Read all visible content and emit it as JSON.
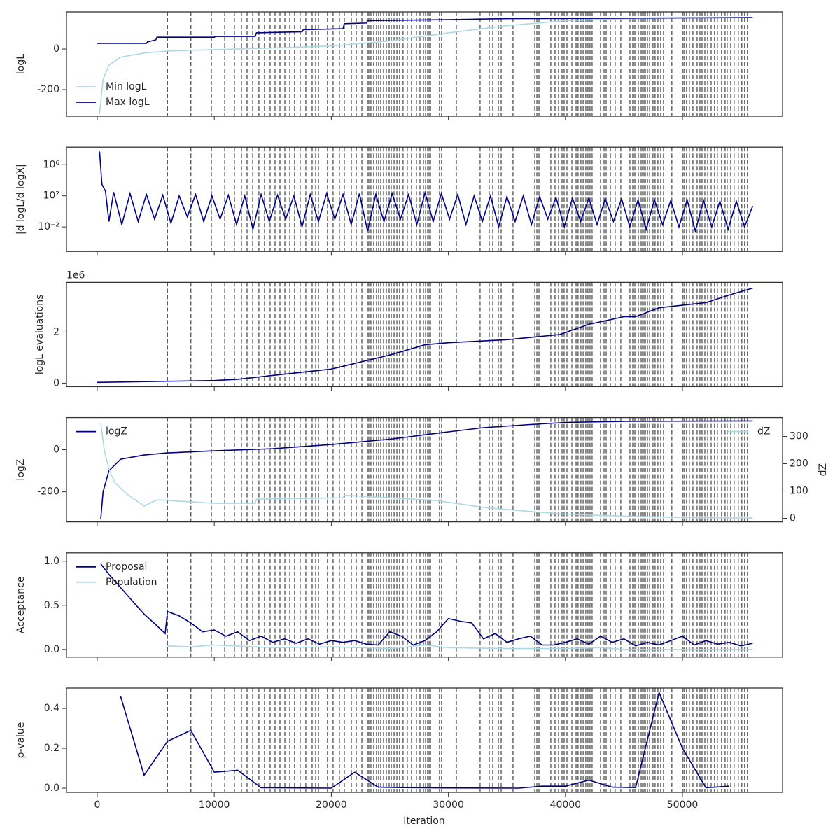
{
  "shared": {
    "xlim": [
      -2630,
      58550
    ],
    "xticks": [
      0,
      10000,
      20000,
      30000,
      40000,
      50000
    ],
    "xlabel": "Iteration",
    "vlines": [
      6000,
      8000,
      9750,
      10890,
      11720,
      12320,
      12800,
      13280,
      13810,
      14290,
      14770,
      15190,
      15610,
      16030,
      16450,
      16860,
      17340,
      17820,
      18360,
      18660,
      18900,
      19670,
      20150,
      20690,
      21110,
      21710,
      22130,
      22610,
      23090,
      23200,
      23380,
      23620,
      23860,
      24040,
      24220,
      24460,
      24700,
      24940,
      25120,
      25360,
      25600,
      25830,
      26130,
      26490,
      26850,
      27270,
      27570,
      27870,
      28050,
      28230,
      28350,
      28470,
      29240,
      29420,
      30680,
      32710,
      33490,
      33790,
      34270,
      34510,
      35520,
      37380,
      37560,
      37740,
      38750,
      39110,
      39410,
      39710,
      39890,
      40130,
      40550,
      40910,
      41080,
      41320,
      41440,
      41560,
      41740,
      41920,
      42100,
      42280,
      43000,
      43300,
      43480,
      43840,
      44250,
      44730,
      45510,
      45750,
      45870,
      45990,
      46230,
      46470,
      46590,
      46710,
      46830,
      47010,
      47190,
      47480,
      47660,
      47900,
      48140,
      48380,
      49090,
      50050,
      50170,
      50350,
      50590,
      50890,
      51250,
      51490,
      51670,
      51910,
      52150,
      52450,
      52740,
      52980,
      53340,
      53640,
      53820,
      54120,
      54410,
      54770,
      55070,
      55310,
      55550
    ]
  },
  "chart_data": [
    {
      "type": "line",
      "ylabel": "logL",
      "ylim": [
        -331,
        183
      ],
      "yticks": [
        -200,
        0
      ],
      "series": [
        {
          "name": "Min logL",
          "color": "#add8e6",
          "legend": "lower left",
          "x": [
            200,
            500,
            1000,
            2000,
            4000,
            6000,
            10000,
            15000,
            20000,
            25000,
            30000,
            35000,
            40000,
            45000,
            50000,
            56000
          ],
          "values": [
            -320,
            -150,
            -80,
            -40,
            -20,
            -10,
            -3,
            5,
            15,
            40,
            80,
            115,
            140,
            150,
            153,
            155
          ]
        },
        {
          "name": "Max logL",
          "color": "#000080",
          "legend": "lower left",
          "x": [
            0,
            4200,
            4300,
            5000,
            5100,
            10000,
            10100,
            13500,
            13600,
            17500,
            17600,
            21000,
            21100,
            23000,
            23100,
            30000,
            35000,
            56000
          ],
          "values": [
            28,
            28,
            35,
            45,
            58,
            58,
            62,
            62,
            80,
            85,
            95,
            100,
            125,
            128,
            140,
            145,
            150,
            155
          ]
        }
      ]
    },
    {
      "type": "line",
      "ylabel": "|d logL/d logX|",
      "log_scale": true,
      "ylim": [
        7e-06,
        180000000
      ],
      "yticks": [
        {
          "value": 0.01,
          "label": "10⁻²"
        },
        {
          "value": 100,
          "label": "10²"
        },
        {
          "value": 1000000,
          "label": "10⁶"
        }
      ],
      "series": [
        {
          "color": "#00008b",
          "x": [
            200,
            400,
            700,
            1000,
            1400,
            2100,
            2800,
            3500,
            4200,
            4900,
            5600,
            6300,
            7000,
            7700,
            8400,
            9100,
            9800,
            10500,
            11200,
            11900,
            12600,
            13300,
            14000,
            14700,
            15400,
            16100,
            16800,
            17500,
            18200,
            18900,
            19600,
            20300,
            21000,
            21700,
            22400,
            23100,
            23800,
            24500,
            25200,
            25900,
            26600,
            27300,
            28000,
            28700,
            29400,
            30100,
            30800,
            31500,
            32200,
            32900,
            33600,
            34300,
            35000,
            35700,
            36400,
            37100,
            37800,
            38500,
            39200,
            39900,
            40600,
            41300,
            42000,
            42700,
            43400,
            44100,
            44800,
            45500,
            46200,
            46900,
            47600,
            48300,
            49000,
            49700,
            50400,
            51100,
            51800,
            52500,
            53200,
            53900,
            54600,
            55300,
            56000
          ],
          "values": [
            50000000,
            3000,
            400,
            0.05,
            300,
            0.02,
            200,
            0.05,
            150,
            0.1,
            120,
            0.03,
            100,
            0.2,
            150,
            0.05,
            100,
            0.1,
            120,
            0.02,
            100,
            0.005,
            150,
            0.05,
            120,
            0.1,
            100,
            0.01,
            150,
            0.05,
            200,
            0.1,
            150,
            0.02,
            200,
            0.003,
            150,
            0.05,
            200,
            0.1,
            150,
            0.02,
            250,
            0.05,
            200,
            0.1,
            150,
            0.02,
            100,
            0.05,
            100,
            0.01,
            80,
            0.05,
            100,
            0.02,
            80,
            0.1,
            60,
            0.01,
            50,
            0.05,
            50,
            0.02,
            40,
            0.05,
            40,
            0.01,
            30,
            0.005,
            30,
            0.02,
            25,
            0.01,
            30,
            0.003,
            25,
            0.01,
            20,
            0.005,
            20,
            0.01,
            5
          ]
        }
      ]
    },
    {
      "type": "line",
      "ylabel": "logL evaluations",
      "offset_text": "1e6",
      "ylim": [
        -137000,
        3945000
      ],
      "yticks": [
        0,
        {
          "value": 2000000,
          "label": "2"
        }
      ],
      "series": [
        {
          "color": "#000080",
          "x": [
            0,
            10000,
            12000,
            15000,
            20000,
            25000,
            28000,
            30000,
            35000,
            39500,
            42000,
            45000,
            46000,
            48000,
            52000,
            54000,
            56000
          ],
          "values": [
            30000,
            100000,
            150000,
            300000,
            550000,
            1100000,
            1500000,
            1580000,
            1700000,
            1900000,
            2300000,
            2600000,
            2600000,
            2950000,
            3150000,
            3450000,
            3720000
          ]
        }
      ]
    },
    {
      "type": "line",
      "ylabel": "logZ",
      "y2label": "dZ",
      "ylim": [
        -343,
        153
      ],
      "yticks": [
        -200,
        0
      ],
      "y2lim": [
        -13,
        369
      ],
      "y2ticks": [
        0,
        100,
        200,
        300
      ],
      "series": [
        {
          "name": "logZ",
          "color": "#000080",
          "legend": "upper left",
          "x": [
            300,
            500,
            1000,
            2000,
            4000,
            6000,
            10000,
            15000,
            20000,
            25000,
            30000,
            33000,
            37000,
            40000,
            45000,
            56000
          ],
          "values": [
            -330,
            -200,
            -100,
            -45,
            -25,
            -15,
            -5,
            5,
            25,
            50,
            85,
            105,
            120,
            130,
            135,
            137
          ]
        },
        {
          "name": "dZ",
          "color": "#add8e6",
          "legend": "upper right",
          "axis": "y2",
          "x": [
            300,
            600,
            1000,
            1500,
            2500,
            4000,
            5100,
            10000,
            13500,
            13600,
            21000,
            21100,
            25000,
            29000,
            33000,
            37000,
            40000,
            45000,
            50000,
            56000
          ],
          "values": [
            350,
            250,
            180,
            130,
            90,
            45,
            68,
            55,
            55,
            70,
            75,
            85,
            75,
            65,
            40,
            25,
            15,
            8,
            3,
            1
          ]
        }
      ]
    },
    {
      "type": "line",
      "ylabel": "Acceptance",
      "ylim": [
        -0.087,
        1.095
      ],
      "yticks": [
        {
          "value": 0,
          "label": "0.0"
        },
        {
          "value": 0.5,
          "label": "0.5"
        },
        {
          "value": 1,
          "label": "1.0"
        }
      ],
      "series": [
        {
          "name": "Proposal",
          "color": "#000080",
          "legend": "upper left",
          "x": [
            300,
            1000,
            2000,
            3000,
            4000,
            5000,
            5800,
            6000,
            7000,
            8000,
            9000,
            10000,
            11000,
            12000,
            13000,
            14000,
            15000,
            16000,
            17000,
            18000,
            19000,
            20000,
            21000,
            22000,
            23000,
            24000,
            25000,
            26000,
            27000,
            28000,
            29000,
            30000,
            31000,
            32000,
            33000,
            34000,
            35000,
            36000,
            37000,
            38000,
            39000,
            40000,
            41000,
            42000,
            43000,
            44000,
            45000,
            46000,
            47000,
            48000,
            49000,
            50000,
            51000,
            52000,
            53000,
            54000,
            55000,
            56000
          ],
          "values": [
            0.97,
            0.85,
            0.7,
            0.55,
            0.4,
            0.28,
            0.18,
            0.43,
            0.38,
            0.3,
            0.2,
            0.22,
            0.15,
            0.2,
            0.1,
            0.15,
            0.08,
            0.12,
            0.07,
            0.12,
            0.06,
            0.1,
            0.08,
            0.1,
            0.06,
            0.05,
            0.2,
            0.15,
            0.05,
            0.1,
            0.2,
            0.35,
            0.32,
            0.3,
            0.12,
            0.18,
            0.08,
            0.12,
            0.15,
            0.05,
            0.05,
            0.08,
            0.12,
            0.06,
            0.15,
            0.08,
            0.12,
            0.04,
            0.08,
            0.05,
            0.1,
            0.15,
            0.05,
            0.1,
            0.06,
            0.08,
            0.04,
            0.07
          ]
        },
        {
          "name": "Population",
          "color": "#add8e6",
          "legend": "upper left",
          "x": [
            6000,
            8000,
            10000,
            15000,
            20000,
            25000,
            28000,
            30000,
            35000,
            40000,
            43000,
            45000,
            50000,
            56000
          ],
          "values": [
            0.04,
            0.03,
            0.05,
            0.02,
            0.03,
            0.01,
            0.05,
            0.02,
            0.01,
            0.01,
            0.02,
            0,
            0,
            0
          ]
        }
      ]
    },
    {
      "type": "line",
      "ylabel": "p-value",
      "ylim": [
        -0.021,
        0.502
      ],
      "yticks": [
        {
          "value": 0,
          "label": "0.0"
        },
        {
          "value": 0.2,
          "label": "0.2"
        },
        {
          "value": 0.4,
          "label": "0.4"
        }
      ],
      "series": [
        {
          "color": "#000080",
          "x": [
            2000,
            4000,
            6000,
            8000,
            10000,
            12000,
            14000,
            20000,
            22000,
            24000,
            26000,
            30000,
            36000,
            38000,
            40000,
            42000,
            44000,
            46000,
            48000,
            50000,
            52000,
            54000
          ],
          "values": [
            0.46,
            0.065,
            0.235,
            0.29,
            0.08,
            0.09,
            0.002,
            0,
            0.08,
            0.005,
            0.003,
            0.001,
            0,
            0.01,
            0.01,
            0.04,
            0.005,
            0.003,
            0.48,
            0.2,
            0.002,
            0.01
          ]
        }
      ]
    }
  ]
}
